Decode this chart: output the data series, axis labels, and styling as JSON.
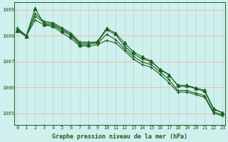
{
  "bg_color": "#cff0ec",
  "grid_color_h": "#f0b8b8",
  "grid_color_v": "#a8dcd8",
  "line_color": "#1a5e20",
  "xlabel": "Graphe pression niveau de la mer (hPa)",
  "xlabel_color": "#1a5e20",
  "ylim": [
    1004.55,
    1009.3
  ],
  "xlim": [
    -0.3,
    23.3
  ],
  "yticks": [
    1005,
    1006,
    1007,
    1008,
    1009
  ],
  "xticks": [
    0,
    1,
    2,
    3,
    4,
    5,
    6,
    7,
    8,
    9,
    10,
    11,
    12,
    13,
    14,
    15,
    16,
    17,
    18,
    19,
    20,
    21,
    22,
    23
  ],
  "series": [
    [
      1008.3,
      1008.0,
      1008.85,
      1008.55,
      1008.5,
      1008.3,
      1008.1,
      1007.75,
      1007.75,
      1007.75,
      1008.22,
      1008.05,
      1007.6,
      1007.3,
      1007.1,
      1007.0,
      1006.7,
      1006.5,
      1006.05,
      1006.05,
      1005.95,
      1005.85,
      1005.15,
      1005.02
    ],
    [
      1008.25,
      1008.0,
      1008.75,
      1008.5,
      1008.45,
      1008.25,
      1008.05,
      1007.7,
      1007.7,
      1007.7,
      1008.05,
      1007.85,
      1007.5,
      1007.2,
      1006.98,
      1006.88,
      1006.6,
      1006.3,
      1005.88,
      1005.88,
      1005.78,
      1005.68,
      1005.05,
      1004.95
    ],
    [
      1008.2,
      1007.98,
      1009.05,
      1008.45,
      1008.4,
      1008.2,
      1008.0,
      1007.65,
      1007.65,
      1007.78,
      1008.28,
      1008.1,
      1007.72,
      1007.38,
      1007.18,
      1007.02,
      1006.68,
      1006.48,
      1006.08,
      1006.08,
      1005.98,
      1005.88,
      1005.18,
      1005.02
    ],
    [
      1008.18,
      1007.98,
      1008.6,
      1008.42,
      1008.35,
      1008.12,
      1007.9,
      1007.6,
      1007.6,
      1007.65,
      1007.82,
      1007.72,
      1007.42,
      1007.1,
      1006.88,
      1006.78,
      1006.5,
      1006.18,
      1005.82,
      1005.82,
      1005.72,
      1005.62,
      1005.0,
      1004.9
    ]
  ],
  "tick_fontsize": 5.0,
  "xlabel_fontsize": 6.0
}
